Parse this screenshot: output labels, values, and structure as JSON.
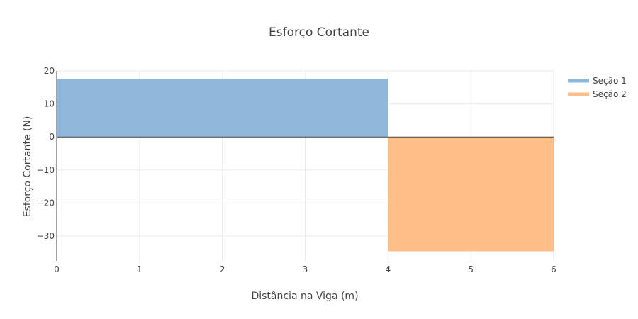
{
  "chart_data": {
    "type": "area",
    "title": "Esforço Cortante",
    "xlabel": "Distância na Viga (m)",
    "ylabel": "Esforço Cortante (N)",
    "xlim": [
      0,
      6
    ],
    "ylim": [
      -37.5,
      20
    ],
    "x_ticks": [
      0,
      1,
      2,
      3,
      4,
      5,
      6
    ],
    "x_tick_labels": [
      "0",
      "1",
      "2",
      "3",
      "4",
      "5",
      "6"
    ],
    "y_ticks": [
      20,
      10,
      0,
      -10,
      -20,
      -30
    ],
    "y_tick_labels": [
      "20",
      "10",
      "0",
      "−10",
      "−20",
      "−30"
    ],
    "grid": true,
    "legend_position": "top-right",
    "series": [
      {
        "name": "Seção 1",
        "color": "#8fb8da",
        "x": [
          0,
          4
        ],
        "y": [
          17.5,
          17.5
        ]
      },
      {
        "name": "Seção 2",
        "color": "#ffbe86",
        "x": [
          4,
          6
        ],
        "y": [
          -34.6,
          -34.6
        ]
      }
    ]
  }
}
